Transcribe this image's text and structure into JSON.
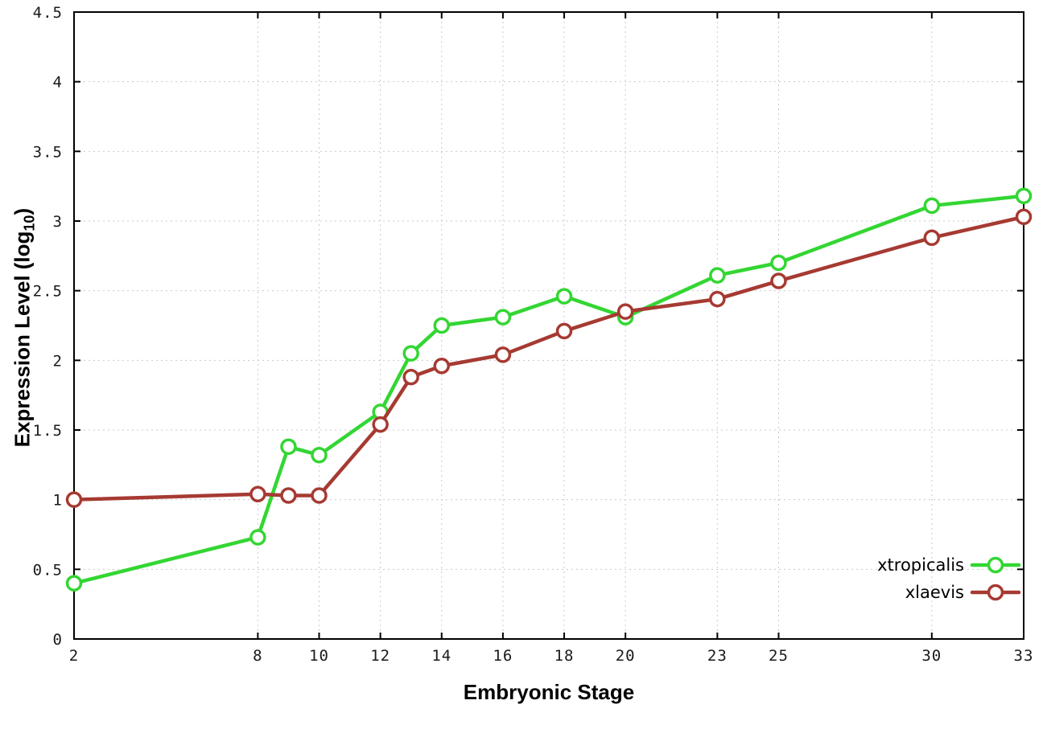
{
  "chart_data": {
    "type": "line",
    "title": "",
    "xlabel": "Embryonic Stage",
    "ylabel": "Expression Level (log10)",
    "ylabel_prefix": "Expression Level (log",
    "ylabel_sub": "10",
    "ylabel_suffix": ")",
    "x": [
      2,
      8,
      9,
      10,
      12,
      13,
      14,
      16,
      18,
      20,
      23,
      25,
      30,
      33
    ],
    "xticks": [
      2,
      8,
      10,
      12,
      14,
      16,
      18,
      20,
      23,
      25,
      30,
      33
    ],
    "xtick_labels": [
      "2",
      "8",
      "10",
      "12",
      "14",
      "16",
      "18",
      "20",
      "23",
      "25",
      "30",
      "33"
    ],
    "yticks": [
      0,
      0.5,
      1,
      1.5,
      2,
      2.5,
      3,
      3.5,
      4,
      4.5
    ],
    "ytick_labels": [
      "0",
      "0.5",
      "1",
      "1.5",
      "2",
      "2.5",
      "3",
      "3.5",
      "4",
      "4.5"
    ],
    "xlim": [
      2,
      33
    ],
    "ylim": [
      0,
      4.5
    ],
    "grid": true,
    "legend_position": "bottom-right",
    "series": [
      {
        "name": "xtropicalis",
        "color": "#33d633",
        "values": [
          0.4,
          0.73,
          1.38,
          1.32,
          1.63,
          2.05,
          2.25,
          2.31,
          2.46,
          2.31,
          2.61,
          2.7,
          3.11,
          3.18
        ]
      },
      {
        "name": "xlaevis",
        "color": "#a63a32",
        "values": [
          1.0,
          1.04,
          1.03,
          1.03,
          1.54,
          1.88,
          1.96,
          2.04,
          2.21,
          2.35,
          2.44,
          2.57,
          2.88,
          3.03
        ]
      }
    ],
    "styles": {
      "grid_color": "#c9c9c9",
      "border_color": "#000000",
      "tick_label_color": "#1a1a1a",
      "marker_fill": "#ffffff"
    }
  }
}
